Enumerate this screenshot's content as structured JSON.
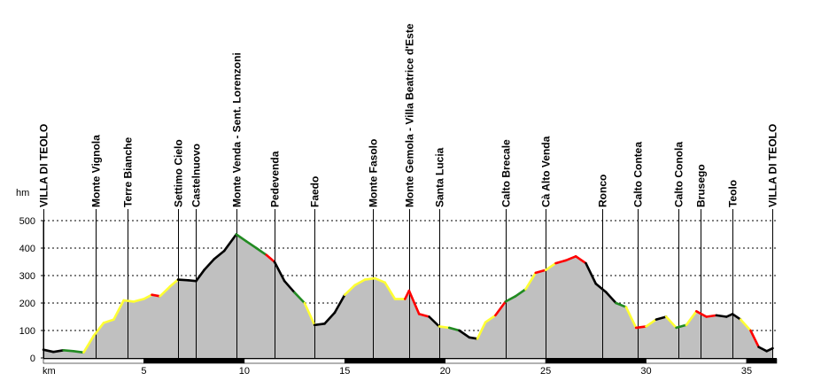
{
  "chart_data": {
    "type": "area",
    "ylabel": "hm",
    "xlabel": "km",
    "xlim": [
      0,
      36.5
    ],
    "ylim": [
      0,
      500
    ],
    "x_ticks": [
      5,
      10,
      15,
      20,
      25,
      30,
      35
    ],
    "y_ticks": [
      0,
      100,
      200,
      300,
      400,
      500
    ],
    "grid": true,
    "colors": {
      "fill": "#c0c0c0",
      "flat": "#000000",
      "gentle": "#228b22",
      "moderate": "#ffff33",
      "steep": "#ff0000"
    },
    "waypoints": [
      {
        "name": "VILLA DI TEOLO",
        "x": 0.0
      },
      {
        "name": "Monte Vignola",
        "x": 2.6
      },
      {
        "name": "Terre Bianche",
        "x": 4.2
      },
      {
        "name": "Settimo Cielo",
        "x": 6.7
      },
      {
        "name": "Castelnuovo",
        "x": 7.6
      },
      {
        "name": "Monte Venda - Sent. Lorenzoni",
        "x": 9.6
      },
      {
        "name": "Pedevenda",
        "x": 11.5
      },
      {
        "name": "Faedo",
        "x": 13.5
      },
      {
        "name": "Monte Fasolo",
        "x": 16.4
      },
      {
        "name": "Monte Gemola - Villa Beatrice d'Este",
        "x": 18.2
      },
      {
        "name": "Santa Lucia",
        "x": 19.7
      },
      {
        "name": "Calto Brecale",
        "x": 23.0
      },
      {
        "name": "Cà Alto Venda",
        "x": 25.0
      },
      {
        "name": "Ronco",
        "x": 27.8
      },
      {
        "name": "Calto Contea",
        "x": 29.6
      },
      {
        "name": "Calto Conola",
        "x": 31.6
      },
      {
        "name": "Brusego",
        "x": 32.7
      },
      {
        "name": "Teolo",
        "x": 34.3
      },
      {
        "name": "VILLA DI TEOLO",
        "x": 36.3
      }
    ],
    "profile": [
      {
        "x": 0.0,
        "y": 30,
        "grade": "flat"
      },
      {
        "x": 0.5,
        "y": 22,
        "grade": "flat"
      },
      {
        "x": 1.0,
        "y": 28,
        "grade": "gentle"
      },
      {
        "x": 1.5,
        "y": 25,
        "grade": "gentle"
      },
      {
        "x": 2.0,
        "y": 20,
        "grade": "moderate"
      },
      {
        "x": 2.5,
        "y": 80,
        "grade": "moderate"
      },
      {
        "x": 3.0,
        "y": 128,
        "grade": "moderate"
      },
      {
        "x": 3.5,
        "y": 140,
        "grade": "moderate"
      },
      {
        "x": 4.0,
        "y": 210,
        "grade": "moderate"
      },
      {
        "x": 4.5,
        "y": 205,
        "grade": "moderate"
      },
      {
        "x": 5.0,
        "y": 215,
        "grade": "moderate"
      },
      {
        "x": 5.4,
        "y": 230,
        "grade": "steep"
      },
      {
        "x": 5.8,
        "y": 225,
        "grade": "moderate"
      },
      {
        "x": 6.3,
        "y": 260,
        "grade": "moderate"
      },
      {
        "x": 6.7,
        "y": 285,
        "grade": "flat"
      },
      {
        "x": 7.2,
        "y": 283,
        "grade": "flat"
      },
      {
        "x": 7.6,
        "y": 280,
        "grade": "flat"
      },
      {
        "x": 8.0,
        "y": 320,
        "grade": "flat"
      },
      {
        "x": 8.5,
        "y": 360,
        "grade": "flat"
      },
      {
        "x": 9.0,
        "y": 390,
        "grade": "flat"
      },
      {
        "x": 9.6,
        "y": 450,
        "grade": "gentle"
      },
      {
        "x": 10.1,
        "y": 425,
        "grade": "gentle"
      },
      {
        "x": 10.6,
        "y": 400,
        "grade": "gentle"
      },
      {
        "x": 11.1,
        "y": 375,
        "grade": "steep"
      },
      {
        "x": 11.5,
        "y": 350,
        "grade": "flat"
      },
      {
        "x": 12.0,
        "y": 280,
        "grade": "flat"
      },
      {
        "x": 12.5,
        "y": 238,
        "grade": "gentle"
      },
      {
        "x": 13.0,
        "y": 200,
        "grade": "moderate"
      },
      {
        "x": 13.5,
        "y": 120,
        "grade": "flat"
      },
      {
        "x": 14.0,
        "y": 125,
        "grade": "flat"
      },
      {
        "x": 14.5,
        "y": 165,
        "grade": "flat"
      },
      {
        "x": 15.0,
        "y": 230,
        "grade": "moderate"
      },
      {
        "x": 15.5,
        "y": 265,
        "grade": "moderate"
      },
      {
        "x": 16.0,
        "y": 285,
        "grade": "moderate"
      },
      {
        "x": 16.5,
        "y": 290,
        "grade": "moderate"
      },
      {
        "x": 17.0,
        "y": 275,
        "grade": "moderate"
      },
      {
        "x": 17.5,
        "y": 215,
        "grade": "moderate"
      },
      {
        "x": 18.0,
        "y": 215,
        "grade": "steep"
      },
      {
        "x": 18.2,
        "y": 245,
        "grade": "steep"
      },
      {
        "x": 18.7,
        "y": 160,
        "grade": "steep"
      },
      {
        "x": 19.2,
        "y": 150,
        "grade": "flat"
      },
      {
        "x": 19.7,
        "y": 115,
        "grade": "moderate"
      },
      {
        "x": 20.2,
        "y": 110,
        "grade": "gentle"
      },
      {
        "x": 20.7,
        "y": 100,
        "grade": "flat"
      },
      {
        "x": 21.2,
        "y": 75,
        "grade": "flat"
      },
      {
        "x": 21.6,
        "y": 70,
        "grade": "moderate"
      },
      {
        "x": 22.0,
        "y": 130,
        "grade": "moderate"
      },
      {
        "x": 22.5,
        "y": 155,
        "grade": "steep"
      },
      {
        "x": 23.0,
        "y": 205,
        "grade": "gentle"
      },
      {
        "x": 23.5,
        "y": 225,
        "grade": "gentle"
      },
      {
        "x": 24.0,
        "y": 250,
        "grade": "moderate"
      },
      {
        "x": 24.5,
        "y": 310,
        "grade": "steep"
      },
      {
        "x": 25.0,
        "y": 320,
        "grade": "moderate"
      },
      {
        "x": 25.5,
        "y": 345,
        "grade": "steep"
      },
      {
        "x": 26.0,
        "y": 355,
        "grade": "steep"
      },
      {
        "x": 26.5,
        "y": 370,
        "grade": "steep"
      },
      {
        "x": 27.0,
        "y": 345,
        "grade": "flat"
      },
      {
        "x": 27.5,
        "y": 270,
        "grade": "flat"
      },
      {
        "x": 28.0,
        "y": 240,
        "grade": "flat"
      },
      {
        "x": 28.5,
        "y": 200,
        "grade": "gentle"
      },
      {
        "x": 29.0,
        "y": 185,
        "grade": "moderate"
      },
      {
        "x": 29.5,
        "y": 110,
        "grade": "steep"
      },
      {
        "x": 30.0,
        "y": 115,
        "grade": "moderate"
      },
      {
        "x": 30.5,
        "y": 140,
        "grade": "flat"
      },
      {
        "x": 31.0,
        "y": 150,
        "grade": "moderate"
      },
      {
        "x": 31.5,
        "y": 110,
        "grade": "gentle"
      },
      {
        "x": 32.0,
        "y": 120,
        "grade": "moderate"
      },
      {
        "x": 32.5,
        "y": 170,
        "grade": "steep"
      },
      {
        "x": 33.0,
        "y": 150,
        "grade": "steep"
      },
      {
        "x": 33.5,
        "y": 155,
        "grade": "flat"
      },
      {
        "x": 34.0,
        "y": 150,
        "grade": "flat"
      },
      {
        "x": 34.3,
        "y": 160,
        "grade": "flat"
      },
      {
        "x": 34.7,
        "y": 140,
        "grade": "moderate"
      },
      {
        "x": 35.2,
        "y": 100,
        "grade": "steep"
      },
      {
        "x": 35.6,
        "y": 40,
        "grade": "flat"
      },
      {
        "x": 36.0,
        "y": 25,
        "grade": "flat"
      },
      {
        "x": 36.3,
        "y": 35,
        "grade": "flat"
      }
    ]
  }
}
